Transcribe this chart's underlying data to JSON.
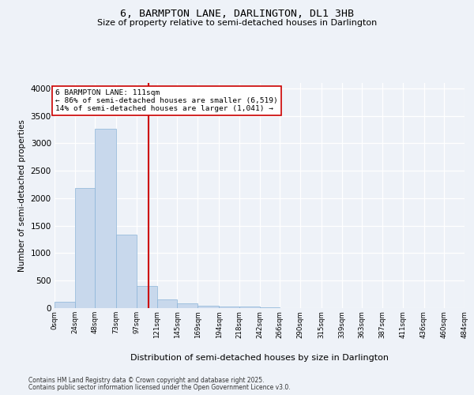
{
  "title": "6, BARMPTON LANE, DARLINGTON, DL1 3HB",
  "subtitle": "Size of property relative to semi-detached houses in Darlington",
  "xlabel": "Distribution of semi-detached houses by size in Darlington",
  "ylabel": "Number of semi-detached properties",
  "footnote1": "Contains HM Land Registry data © Crown copyright and database right 2025.",
  "footnote2": "Contains public sector information licensed under the Open Government Licence v3.0.",
  "bar_color": "#c8d8ec",
  "bar_edge_color": "#8ab4d8",
  "background_color": "#eef2f8",
  "grid_color": "#ffffff",
  "vline_x": 111,
  "vline_color": "#cc0000",
  "annotation_text": "6 BARMPTON LANE: 111sqm\n← 86% of semi-detached houses are smaller (6,519)\n14% of semi-detached houses are larger (1,041) →",
  "bin_edges": [
    0,
    24,
    48,
    73,
    97,
    121,
    145,
    169,
    194,
    218,
    242,
    266,
    290,
    315,
    339,
    363,
    387,
    411,
    436,
    460,
    484
  ],
  "bin_labels": [
    "0sqm",
    "24sqm",
    "48sqm",
    "73sqm",
    "97sqm",
    "121sqm",
    "145sqm",
    "169sqm",
    "194sqm",
    "218sqm",
    "242sqm",
    "266sqm",
    "290sqm",
    "315sqm",
    "339sqm",
    "363sqm",
    "387sqm",
    "411sqm",
    "436sqm",
    "460sqm",
    "484sqm"
  ],
  "bar_heights": [
    110,
    2185,
    3270,
    1340,
    400,
    165,
    90,
    45,
    30,
    25,
    20,
    0,
    0,
    0,
    0,
    0,
    0,
    0,
    0,
    0
  ],
  "ylim": [
    0,
    4100
  ],
  "yticks": [
    0,
    500,
    1000,
    1500,
    2000,
    2500,
    3000,
    3500,
    4000
  ]
}
